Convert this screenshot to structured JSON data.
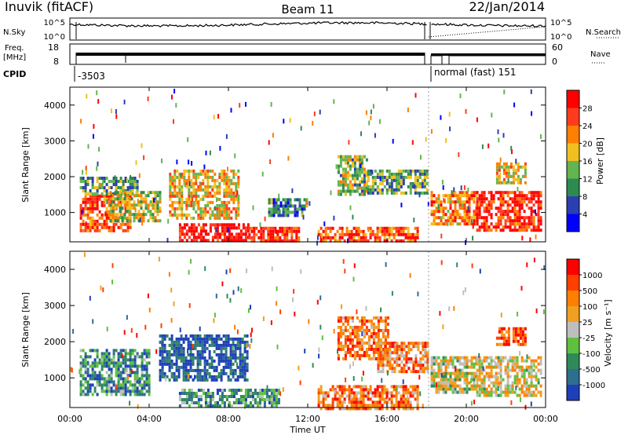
{
  "header": {
    "station": "Inuvik (fitACF)",
    "beam": "Beam 11",
    "date": "22/Jan/2014"
  },
  "strip_labels": {
    "nsky": "N.Sky",
    "nsearch": "N.Search",
    "freq_line1": "Freq.",
    "freq_line2": "[MHz]",
    "nave": "Nave",
    "cpid": "CPID",
    "nsky_ticks": [
      "10^5",
      "10^0"
    ],
    "nsearch_ticks": [
      "10^5",
      "10^0"
    ],
    "freq_ticks": [
      "18",
      "8"
    ],
    "nave_ticks": [
      "60",
      "0"
    ]
  },
  "cpid_labels": [
    {
      "text": "-3503",
      "start_hour": 0.0
    },
    {
      "text": "normal (fast) 151",
      "start_hour": 18.2
    }
  ],
  "chart_data": [
    {
      "type": "heatmap",
      "panel": "power",
      "ylabel": "Slant Range [km]",
      "yticks": [
        "1000",
        "2000",
        "3000",
        "4000"
      ],
      "ylim": [
        180,
        4500
      ],
      "xlim": [
        0,
        24
      ],
      "colorbar_label": "Power [dB]",
      "colorbar_ticks": [
        "4",
        "8",
        "12",
        "16",
        "20",
        "24",
        "28"
      ],
      "colorbar_colors": [
        "#0000ff",
        "#2b3fb0",
        "#2e8b4f",
        "#64b450",
        "#f0c020",
        "#ff7f00",
        "#ff3b1e",
        "#ff0000"
      ],
      "regions": [
        {
          "t0": 0.5,
          "t1": 3.0,
          "r0": 500,
          "r1": 1500,
          "intensity": 0.8
        },
        {
          "t0": 0.5,
          "t1": 3.4,
          "r0": 1500,
          "r1": 2000,
          "intensity": 0.35
        },
        {
          "t0": 2.0,
          "t1": 4.5,
          "r0": 800,
          "r1": 1600,
          "intensity": 0.5
        },
        {
          "t0": 5.0,
          "t1": 8.5,
          "r0": 800,
          "r1": 2200,
          "intensity": 0.6
        },
        {
          "t0": 5.5,
          "t1": 9.0,
          "r0": 180,
          "r1": 700,
          "intensity": 0.95
        },
        {
          "t0": 9.0,
          "t1": 11.5,
          "r0": 180,
          "r1": 600,
          "intensity": 0.85
        },
        {
          "t0": 10.0,
          "t1": 12.0,
          "r0": 900,
          "r1": 1400,
          "intensity": 0.3
        },
        {
          "t0": 12.5,
          "t1": 17.5,
          "r0": 180,
          "r1": 600,
          "intensity": 0.8
        },
        {
          "t0": 13.5,
          "t1": 15.0,
          "r0": 1500,
          "r1": 2600,
          "intensity": 0.45
        },
        {
          "t0": 15.0,
          "t1": 18.0,
          "r0": 1500,
          "r1": 2200,
          "intensity": 0.4
        },
        {
          "t0": 18.2,
          "t1": 20.5,
          "r0": 700,
          "r1": 1600,
          "intensity": 0.7
        },
        {
          "t0": 20.5,
          "t1": 23.8,
          "r0": 500,
          "r1": 1600,
          "intensity": 0.9
        },
        {
          "t0": 21.5,
          "t1": 23.0,
          "r0": 1800,
          "r1": 2400,
          "intensity": 0.6
        }
      ]
    },
    {
      "type": "heatmap",
      "panel": "velocity",
      "ylabel": "Slant Range [km]",
      "yticks": [
        "1000",
        "2000",
        "3000",
        "4000"
      ],
      "ylim": [
        180,
        4500
      ],
      "xlim": [
        0,
        24
      ],
      "xticks": [
        "00:00",
        "04:00",
        "08:00",
        "12:00",
        "16:00",
        "20:00",
        "00:00"
      ],
      "xlabel": "Time UT",
      "colorbar_label": "Velocity [m s⁻¹]",
      "colorbar_ticks": [
        "1000",
        "500",
        "100",
        "25",
        "-25",
        "-100",
        "-500",
        "-1000"
      ],
      "colorbar_colors": [
        "#1f3fb8",
        "#2e6e8e",
        "#2f8a5a",
        "#5fc040",
        "#bebebe",
        "#f0a020",
        "#ff7f00",
        "#ff3f00",
        "#ff0000"
      ],
      "regions": [
        {
          "t0": 0.5,
          "t1": 4.0,
          "r0": 500,
          "r1": 1800,
          "intensity": 0.25
        },
        {
          "t0": 4.5,
          "t1": 9.0,
          "r0": 900,
          "r1": 2200,
          "intensity": 0.1
        },
        {
          "t0": 5.5,
          "t1": 10.5,
          "r0": 180,
          "r1": 700,
          "intensity": 0.3
        },
        {
          "t0": 12.5,
          "t1": 17.5,
          "r0": 180,
          "r1": 800,
          "intensity": 0.75
        },
        {
          "t0": 13.5,
          "t1": 16.0,
          "r0": 1500,
          "r1": 2700,
          "intensity": 0.75
        },
        {
          "t0": 15.5,
          "t1": 18.0,
          "r0": 1200,
          "r1": 2000,
          "intensity": 0.7
        },
        {
          "t0": 18.2,
          "t1": 20.5,
          "r0": 600,
          "r1": 1600,
          "intensity": 0.5
        },
        {
          "t0": 20.5,
          "t1": 23.8,
          "r0": 500,
          "r1": 1600,
          "intensity": 0.55
        },
        {
          "t0": 21.5,
          "t1": 23.0,
          "r0": 1900,
          "r1": 2400,
          "intensity": 0.8
        }
      ]
    }
  ]
}
